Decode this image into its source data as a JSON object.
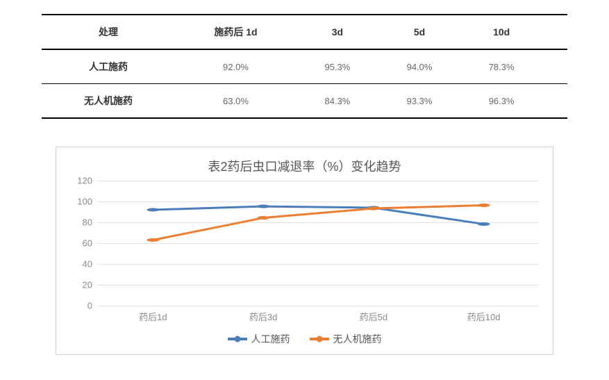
{
  "table": {
    "columns": [
      "处理",
      "施药后 1d",
      "3d",
      "5d",
      "10d"
    ],
    "rows": [
      {
        "label": "人工施药",
        "cells": [
          "92.0%",
          "95.3%",
          "94.0%",
          "78.3%"
        ]
      },
      {
        "label": "无人机施药",
        "cells": [
          "63.0%",
          "84.3%",
          "93.3%",
          "96.3%"
        ]
      }
    ]
  },
  "chart": {
    "type": "line",
    "title": "表2药后虫口减退率（%）变化趋势",
    "title_fontsize": 18,
    "background_color": "#ffffff",
    "grid_color": "#e0e0e0",
    "border_color": "#d0d0d0",
    "ylim": [
      0,
      120
    ],
    "ytick_step": 20,
    "yticks": [
      0,
      20,
      40,
      60,
      80,
      100,
      120
    ],
    "x_labels": [
      "药后1d",
      "药后3d",
      "药后5d",
      "药后10d"
    ],
    "tick_fontsize": 13,
    "tick_color": "#888888",
    "line_width": 3,
    "marker_radius": 5,
    "marker_style": "circle",
    "series": [
      {
        "name": "人工施药",
        "color": "#4a7ebb",
        "values": [
          92.0,
          95.3,
          94.0,
          78.3
        ]
      },
      {
        "name": "无人机施药",
        "color": "#ed7d31",
        "values": [
          63.0,
          84.3,
          93.3,
          96.3
        ]
      }
    ],
    "legend_position": "bottom"
  }
}
